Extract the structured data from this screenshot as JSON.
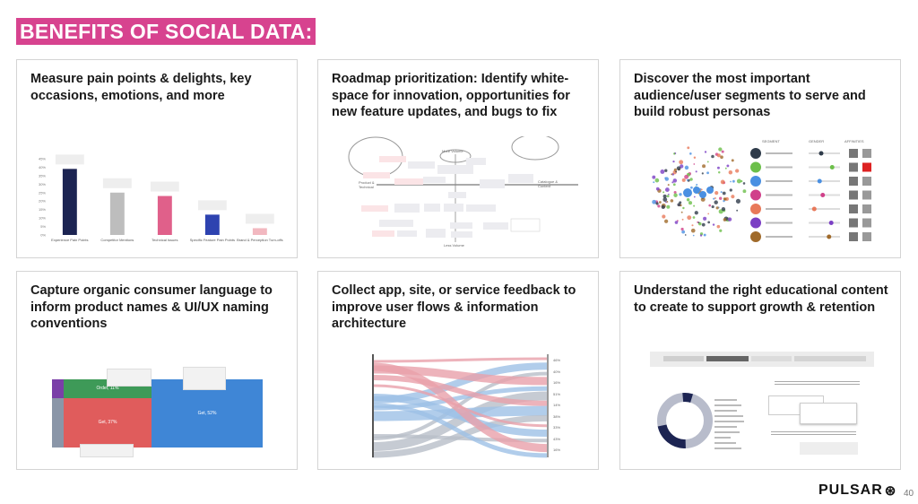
{
  "slide": {
    "title": "BENEFITS OF SOCIAL DATA:",
    "page_number": "40",
    "logo_text": "PULSAR",
    "accent_color": "#d7438f"
  },
  "cards": [
    {
      "heading": "Measure pain points & delights, key occasions, emotions, and more"
    },
    {
      "heading": "Roadmap prioritization: Identify white-space for innovation, opportunities for new feature updates, and bugs to fix"
    },
    {
      "heading": "Discover the most important audience/user segments to serve and build  robust personas"
    },
    {
      "heading": "Capture organic consumer language to inform product names & UI/UX naming conventions"
    },
    {
      "heading": "Collect app, site, or service feedback to improve user flows & information architecture"
    },
    {
      "heading": "Understand the right educational content to create to support growth & retention"
    }
  ],
  "chart_data": {
    "type": "bar",
    "categories": [
      "Experience Pain Points",
      "Competitor Mentions",
      "Technical Issues",
      "Specific Feature Pain Points",
      "Brand & Perception Turn-offs"
    ],
    "values": [
      39,
      25,
      23,
      12,
      4
    ],
    "colors": [
      "#1c2452",
      "#bdbdbd",
      "#e0608a",
      "#2e43b0",
      "#f2b8c0"
    ],
    "yticks": [
      "0%",
      "5%",
      "10%",
      "15%",
      "20%",
      "25%",
      "30%",
      "35%",
      "40%",
      "45%"
    ],
    "ylim": [
      0,
      45
    ]
  },
  "roadmap": {
    "top": "More Volume",
    "bottom": "Less Volume",
    "left": "Product & Technical",
    "right": "Catalogue & Content"
  },
  "segments": {
    "headers": [
      "SEGMENT",
      "GENDER",
      "AFFINITIES"
    ],
    "colors": [
      "#2f3b4a",
      "#6cbf4a",
      "#4a90e2",
      "#d0408a",
      "#e8795a",
      "#7b3fc4",
      "#a06a2a"
    ],
    "gender_levels": [
      0.4,
      0.75,
      0.35,
      0.45,
      0.18,
      0.72,
      0.65
    ]
  },
  "mosaic": {
    "order": "Order, 11%",
    "get_left": "Get, 37%",
    "get_right": "Get, 52%"
  },
  "sankey": {
    "right_pcts": [
      "46%",
      "40%",
      "16%",
      "51%",
      "14%",
      "38%",
      "33%",
      "43%",
      "16%"
    ]
  }
}
